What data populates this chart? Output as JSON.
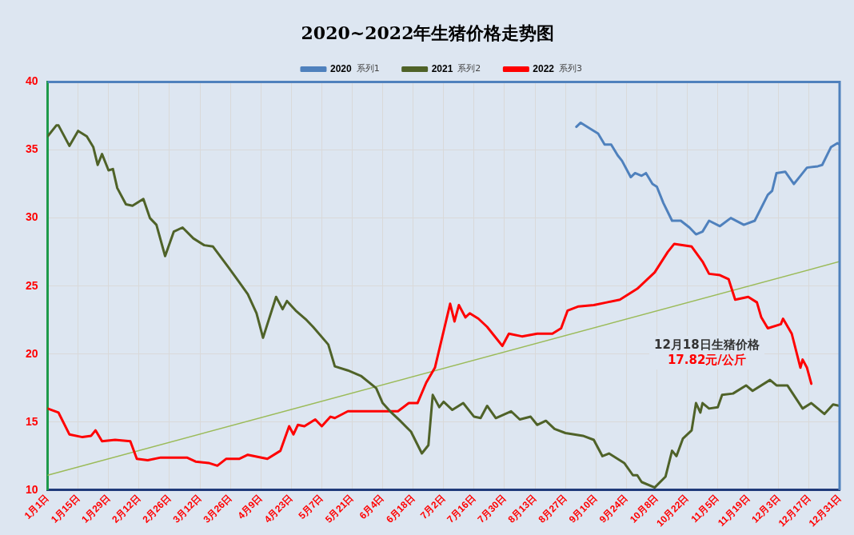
{
  "chart_data": {
    "type": "line",
    "title": "2020~2022年生猪价格走势图",
    "xlim": [
      "--01-01",
      "--12-31"
    ],
    "xticks": [
      {
        "value": "--01-01",
        "label": "1月1日"
      },
      {
        "value": "--01-15",
        "label": "1月15日"
      },
      {
        "value": "--01-29",
        "label": "1月29日"
      },
      {
        "value": "--02-12",
        "label": "2月12日"
      },
      {
        "value": "--02-26",
        "label": "2月26日"
      },
      {
        "value": "--03-12",
        "label": "3月12日"
      },
      {
        "value": "--03-26",
        "label": "3月26日"
      },
      {
        "value": "--04-09",
        "label": "4月9日"
      },
      {
        "value": "--04-23",
        "label": "4月23日"
      },
      {
        "value": "--05-07",
        "label": "5月7日"
      },
      {
        "value": "--05-21",
        "label": "5月21日"
      },
      {
        "value": "--06-04",
        "label": "6月4日"
      },
      {
        "value": "--06-18",
        "label": "6月18日"
      },
      {
        "value": "--07-02",
        "label": "7月2日"
      },
      {
        "value": "--07-16",
        "label": "7月16日"
      },
      {
        "value": "--07-30",
        "label": "7月30日"
      },
      {
        "value": "--08-13",
        "label": "8月13日"
      },
      {
        "value": "--08-27",
        "label": "8月27日"
      },
      {
        "value": "--09-10",
        "label": "9月10日"
      },
      {
        "value": "--09-24",
        "label": "9月24日"
      },
      {
        "value": "--10-08",
        "label": "10月8日"
      },
      {
        "value": "--10-22",
        "label": "10月22日"
      },
      {
        "value": "--11-05",
        "label": "11月5日"
      },
      {
        "value": "--11-19",
        "label": "11月19日"
      },
      {
        "value": "--12-03",
        "label": "12月3日"
      },
      {
        "value": "--12-17",
        "label": "12月17日"
      },
      {
        "value": "--12-31",
        "label": "12月31日"
      }
    ],
    "ylim": [
      10,
      40
    ],
    "yticks": [
      10,
      15,
      20,
      25,
      30,
      35,
      40
    ],
    "grid": true,
    "legend": "top",
    "marker": "none",
    "line_style": "solid",
    "annotations": [
      "系列1",
      "系列2",
      "系列3",
      "12月18日生猪价格",
      "17.82元/公斤"
    ],
    "series": [
      {
        "name": "2020",
        "color": "#4f81bd",
        "x": [
          "--09-01",
          "--09-03",
          "--09-08",
          "--09-11",
          "--09-14",
          "--09-17",
          "--09-20",
          "--09-22",
          "--09-26",
          "--09-28",
          "--10-01",
          "--10-03",
          "--10-06",
          "--10-08",
          "--10-11",
          "--10-15",
          "--10-19",
          "--10-23",
          "--10-26",
          "--10-29",
          "--11-01",
          "--11-06",
          "--11-11",
          "--11-17",
          "--11-22",
          "--11-28",
          "--11-30",
          "--12-02",
          "--12-06",
          "--12-10",
          "--12-13",
          "--12-16",
          "--12-21",
          "--12-23",
          "--12-27",
          "--12-30",
          "--12-31"
        ],
        "values": [
          36.7,
          37.0,
          36.5,
          36.2,
          35.4,
          35.4,
          34.6,
          34.2,
          33.0,
          33.3,
          33.1,
          33.3,
          32.5,
          32.3,
          31.1,
          29.8,
          29.8,
          29.3,
          28.8,
          29.0,
          29.8,
          29.4,
          30.0,
          29.5,
          29.8,
          31.7,
          32.0,
          33.3,
          33.4,
          32.5,
          33.1,
          33.7,
          33.8,
          33.9,
          35.2,
          35.5,
          35.4
        ]
      },
      {
        "name": "2021",
        "color": "#4f6228",
        "x": [
          "--01-01",
          "--01-05",
          "--01-06",
          "--01-11",
          "--01-15",
          "--01-19",
          "--01-22",
          "--01-24",
          "--01-26",
          "--01-29",
          "--01-31",
          "--02-02",
          "--02-06",
          "--02-09",
          "--02-14",
          "--02-17",
          "--02-20",
          "--02-24",
          "--02-28",
          "--03-04",
          "--03-09",
          "--03-14",
          "--03-18",
          "--03-25",
          "--03-30",
          "--04-03",
          "--04-07",
          "--04-10",
          "--04-16",
          "--04-19",
          "--04-21",
          "--04-25",
          "--04-30",
          "--05-03",
          "--05-10",
          "--05-13",
          "--05-19",
          "--05-25",
          "--06-01",
          "--06-04",
          "--06-08",
          "--06-12",
          "--06-17",
          "--06-22",
          "--06-25",
          "--06-27",
          "--06-30",
          "--07-02",
          "--07-06",
          "--07-11",
          "--07-16",
          "--07-19",
          "--07-22",
          "--07-26",
          "--08-02",
          "--08-06",
          "--08-11",
          "--08-14",
          "--08-18",
          "--08-22",
          "--08-27",
          "--09-04",
          "--09-09",
          "--09-13",
          "--09-16",
          "--09-23",
          "--09-27",
          "--09-29",
          "--10-01",
          "--10-07",
          "--10-12",
          "--10-15",
          "--10-17",
          "--10-20",
          "--10-24",
          "--10-26",
          "--10-28",
          "--10-29",
          "--11-01",
          "--11-05",
          "--11-07",
          "--11-12",
          "--11-18",
          "--11-21",
          "--11-29",
          "--12-02",
          "--12-07",
          "--12-14",
          "--12-18",
          "--12-24",
          "--12-28",
          "--12-31"
        ],
        "values": [
          36.0,
          36.8,
          36.8,
          35.3,
          36.4,
          36.0,
          35.2,
          33.9,
          34.7,
          33.5,
          33.6,
          32.2,
          31.0,
          30.9,
          31.4,
          30.0,
          29.5,
          27.2,
          29.0,
          29.3,
          28.5,
          28.0,
          27.9,
          26.4,
          25.3,
          24.4,
          23.0,
          21.2,
          24.2,
          23.3,
          23.9,
          23.2,
          22.5,
          22.0,
          20.7,
          19.1,
          18.8,
          18.4,
          17.5,
          16.4,
          15.7,
          15.1,
          14.3,
          12.7,
          13.3,
          17.0,
          16.1,
          16.5,
          15.9,
          16.4,
          15.4,
          15.3,
          16.2,
          15.3,
          15.8,
          15.2,
          15.4,
          14.8,
          15.1,
          14.5,
          14.2,
          14.0,
          13.7,
          12.5,
          12.7,
          12.0,
          11.1,
          11.1,
          10.6,
          10.2,
          11.0,
          12.9,
          12.5,
          13.8,
          14.4,
          16.4,
          15.7,
          16.4,
          16.0,
          16.1,
          17.0,
          17.1,
          17.7,
          17.3,
          18.1,
          17.7,
          17.7,
          16.0,
          16.4,
          15.6,
          16.3,
          16.2
        ]
      },
      {
        "name": "2022",
        "color": "#ff0000",
        "x": [
          "--01-01",
          "--01-06",
          "--01-11",
          "--01-17",
          "--01-21",
          "--01-23",
          "--01-26",
          "--02-01",
          "--02-08",
          "--02-11",
          "--02-16",
          "--02-22",
          "--03-06",
          "--03-10",
          "--03-16",
          "--03-20",
          "--03-24",
          "--03-30",
          "--04-03",
          "--04-12",
          "--04-18",
          "--04-22",
          "--04-24",
          "--04-26",
          "--04-29",
          "--05-04",
          "--05-07",
          "--05-11",
          "--05-13",
          "--05-19",
          "--05-31",
          "--06-11",
          "--06-16",
          "--06-20",
          "--06-24",
          "--06-28",
          "--07-05",
          "--07-07",
          "--07-09",
          "--07-12",
          "--07-14",
          "--07-18",
          "--07-22",
          "--07-27",
          "--07-29",
          "--08-01",
          "--08-07",
          "--08-14",
          "--08-21",
          "--08-25",
          "--08-28",
          "--09-02",
          "--09-09",
          "--09-15",
          "--09-21",
          "--09-29",
          "--10-07",
          "--10-13",
          "--10-16",
          "--10-24",
          "--10-29",
          "--11-01",
          "--11-06",
          "--11-10",
          "--11-13",
          "--11-19",
          "--11-23",
          "--11-25",
          "--11-28",
          "--12-04",
          "--12-05",
          "--12-09",
          "--12-13",
          "--12-14",
          "--12-16",
          "--12-18"
        ],
        "values": [
          16.0,
          15.7,
          14.1,
          13.9,
          14.0,
          14.4,
          13.6,
          13.7,
          13.6,
          12.3,
          12.2,
          12.4,
          12.4,
          12.1,
          12.0,
          11.8,
          12.3,
          12.3,
          12.6,
          12.3,
          12.9,
          14.7,
          14.1,
          14.8,
          14.7,
          15.2,
          14.7,
          15.4,
          15.3,
          15.8,
          15.8,
          15.8,
          16.4,
          16.4,
          17.9,
          19.0,
          23.7,
          22.4,
          23.6,
          22.7,
          23.0,
          22.6,
          22.0,
          21.0,
          20.6,
          21.5,
          21.3,
          21.5,
          21.5,
          21.9,
          23.2,
          23.5,
          23.6,
          23.8,
          24.0,
          24.8,
          26.0,
          27.5,
          28.1,
          27.9,
          26.8,
          25.9,
          25.8,
          25.5,
          24.0,
          24.2,
          23.8,
          22.7,
          21.9,
          22.2,
          22.6,
          21.5,
          19.0,
          19.6,
          19.0,
          17.82
        ]
      },
      {
        "type": "line",
        "color": "#9bbb59",
        "x": [
          "--01-01",
          "--12-31"
        ],
        "values": [
          11.1,
          26.8
        ]
      }
    ]
  }
}
